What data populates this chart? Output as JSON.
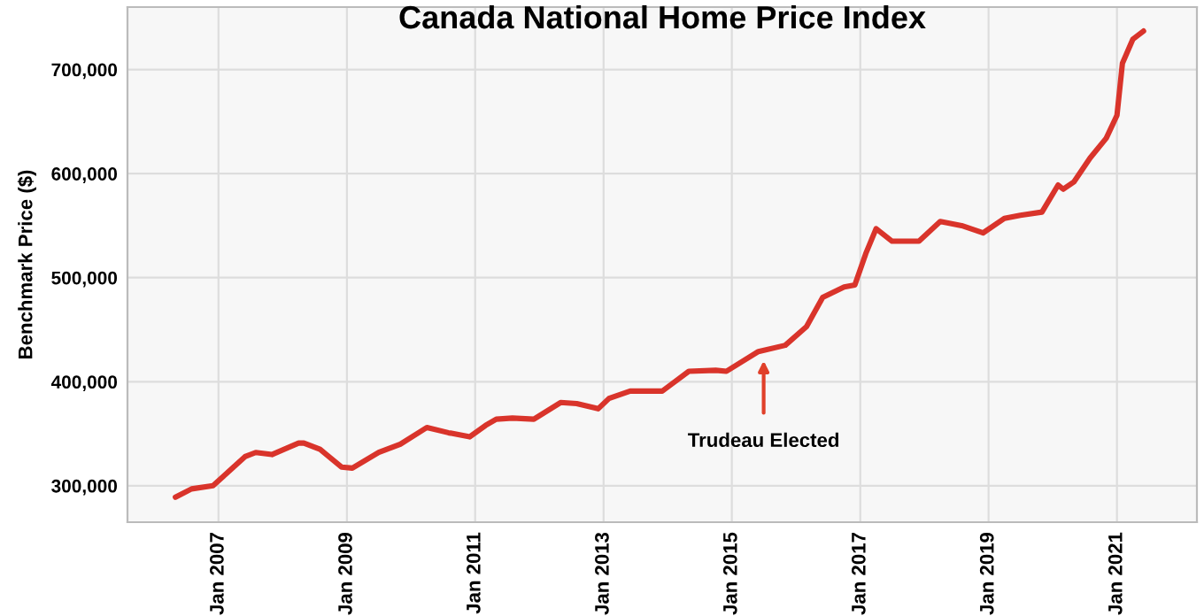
{
  "chart_data": {
    "type": "line",
    "title": "Canada National Home Price Index",
    "ylabel": "Benchmark Price ($)",
    "x": [
      "2006-05",
      "2006-08",
      "2006-12",
      "2007-06",
      "2007-08",
      "2007-11",
      "2008-04",
      "2008-05",
      "2008-08",
      "2008-12",
      "2009-02",
      "2009-07",
      "2009-11",
      "2010-04",
      "2010-08",
      "2010-12",
      "2011-03",
      "2011-05",
      "2011-08",
      "2011-12",
      "2012-05",
      "2012-08",
      "2012-12",
      "2013-02",
      "2013-06",
      "2013-12",
      "2014-05",
      "2014-10",
      "2014-12",
      "2015-06",
      "2015-11",
      "2016-03",
      "2016-06",
      "2016-10",
      "2016-12",
      "2017-02",
      "2017-04",
      "2017-07",
      "2017-12",
      "2018-04",
      "2018-08",
      "2018-12",
      "2019-04",
      "2019-07",
      "2019-11",
      "2020-02",
      "2020-03",
      "2020-05",
      "2020-08",
      "2020-11",
      "2021-01",
      "2021-02",
      "2021-04",
      "2021-06"
    ],
    "series": [
      {
        "color": "#d9342b",
        "values": [
          289000,
          297000,
          300000,
          328000,
          332000,
          330000,
          341000,
          341000,
          335000,
          318000,
          317000,
          332000,
          340000,
          356000,
          351000,
          347000,
          358000,
          364000,
          365000,
          364000,
          380000,
          379000,
          374000,
          384000,
          391000,
          391000,
          410000,
          411000,
          410000,
          429000,
          435000,
          453000,
          481000,
          491000,
          493000,
          523000,
          547000,
          535000,
          535000,
          554000,
          550000,
          543000,
          557000,
          560000,
          563000,
          589000,
          585000,
          592000,
          615000,
          634000,
          656000,
          706000,
          729000,
          737000
        ]
      }
    ],
    "xlim": [
      "2005-08",
      "2022-04"
    ],
    "ylim": [
      265000,
      760000
    ],
    "xticks": [
      {
        "value": "2007-01",
        "label": "Jan 2007"
      },
      {
        "value": "2009-01",
        "label": "Jan 2009"
      },
      {
        "value": "2011-01",
        "label": "Jan 2011"
      },
      {
        "value": "2013-01",
        "label": "Jan 2013"
      },
      {
        "value": "2015-01",
        "label": "Jan 2015"
      },
      {
        "value": "2017-01",
        "label": "Jan 2017"
      },
      {
        "value": "2019-01",
        "label": "Jan 2019"
      },
      {
        "value": "2021-01",
        "label": "Jan 2021"
      }
    ],
    "yticks": [
      {
        "value": 300000,
        "label": "300,000"
      },
      {
        "value": 400000,
        "label": "400,000"
      },
      {
        "value": 500000,
        "label": "500,000"
      },
      {
        "value": 600000,
        "label": "600,000"
      },
      {
        "value": 700000,
        "label": "700,000"
      }
    ],
    "annotations": [
      {
        "text": "Trudeau Elected",
        "x": "2015-07",
        "y": 425000
      }
    ],
    "grid": true,
    "legend": false,
    "marker": "none",
    "line_style": "solid"
  }
}
